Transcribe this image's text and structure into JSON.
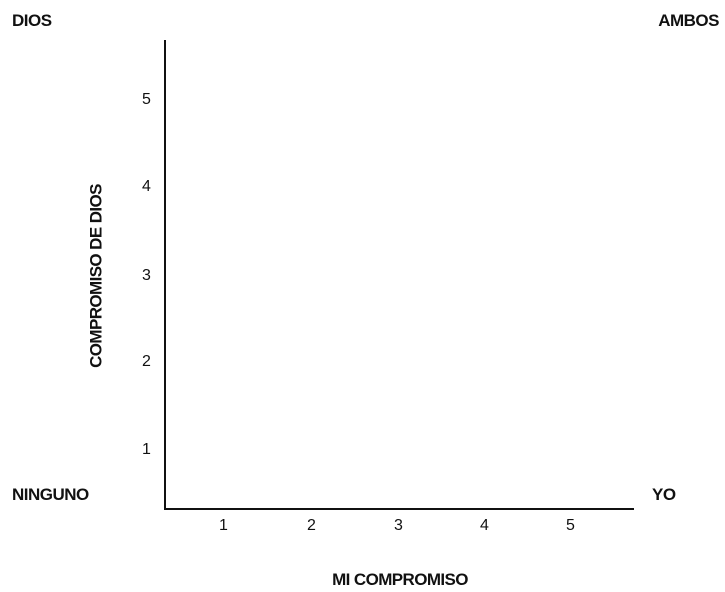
{
  "corners": {
    "top_left": "DIOS",
    "top_right": "AMBOS",
    "bottom_left": "NINGUNO",
    "bottom_right": "YO"
  },
  "axes": {
    "x_title": "MI COMPROMISO",
    "y_title": "COMPROMISO DE DIOS",
    "x_ticks": [
      "1",
      "2",
      "3",
      "4",
      "5"
    ],
    "y_ticks": [
      "1",
      "2",
      "3",
      "4",
      "5"
    ]
  }
}
